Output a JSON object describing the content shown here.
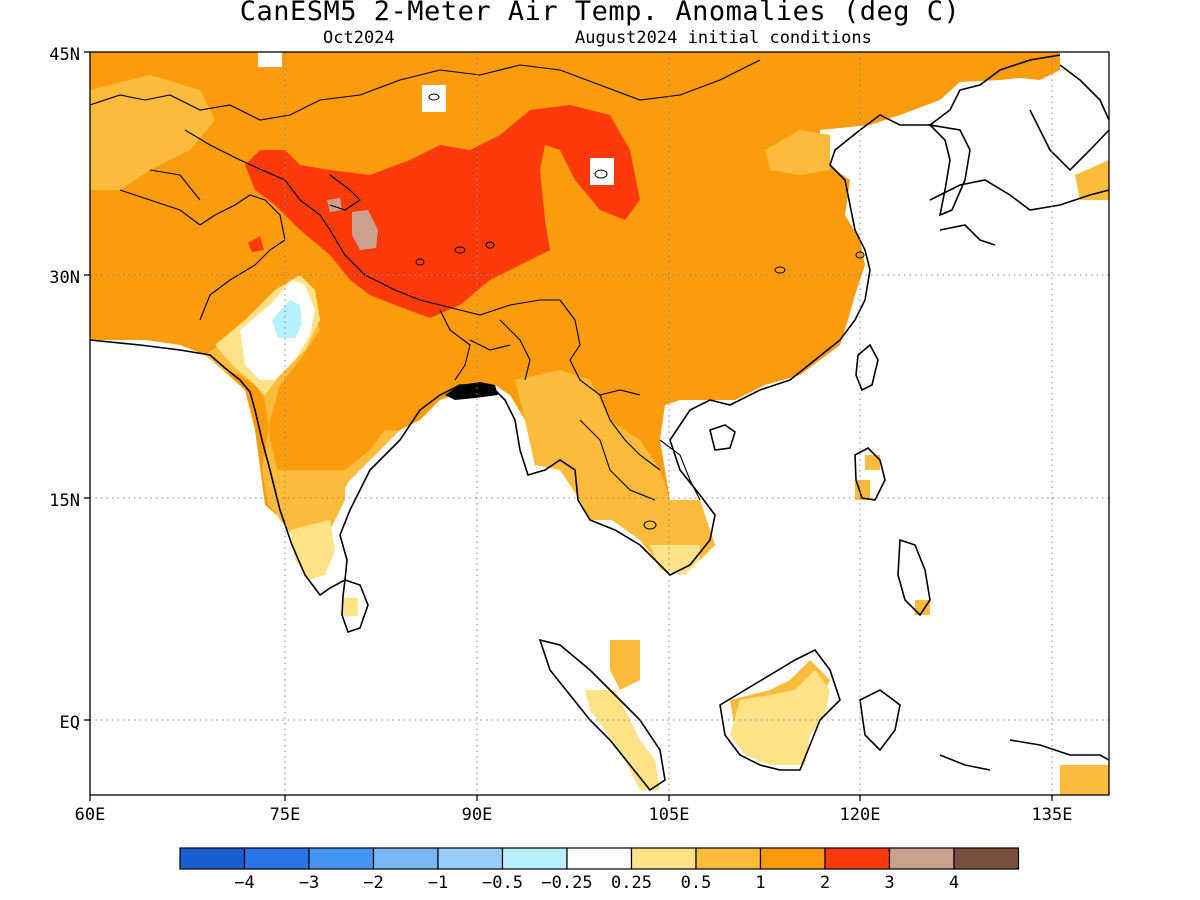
{
  "title": "CanESM5 2-Meter Air Temp. Anomalies (deg C)",
  "subtitle_left": "Oct2024",
  "subtitle_right": "August2024 initial conditions",
  "map": {
    "lon_range": [
      60,
      140
    ],
    "lat_range": [
      -6,
      45
    ],
    "lat_ticks": [
      "45N",
      "30N",
      "15N",
      "EQ"
    ],
    "lon_ticks": [
      "60E",
      "75E",
      "90E",
      "105E",
      "120E",
      "135E"
    ],
    "grid": "dotted"
  },
  "colorbar": {
    "colors": [
      "#1a5fcf",
      "#2a74e8",
      "#4595f2",
      "#78b6f7",
      "#98cdf8",
      "#b6f0fb",
      "#ffffff",
      "#fde287",
      "#fdbb3b",
      "#fc9c0c",
      "#fc3a0a",
      "#cd9f8f",
      "#7b4e3f"
    ],
    "labels": [
      "−4",
      "−3",
      "−2",
      "−1",
      "−0.5",
      "−0.25",
      "0.25",
      "0.5",
      "1",
      "2",
      "3",
      "4"
    ]
  }
}
